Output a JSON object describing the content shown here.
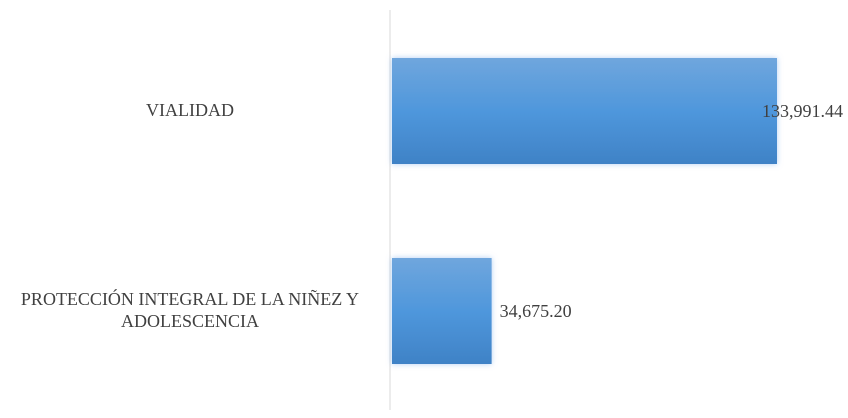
{
  "chart_data": {
    "type": "barh",
    "categories": [
      "VIALIDAD",
      "PROTECCIÓN INTEGRAL DE LA NIÑEZ Y ADOLESCENCIA"
    ],
    "values": [
      133991.44,
      34675.2
    ],
    "value_labels": [
      "133,991.44",
      "34,675.20"
    ],
    "color": "#5b9bd5"
  }
}
